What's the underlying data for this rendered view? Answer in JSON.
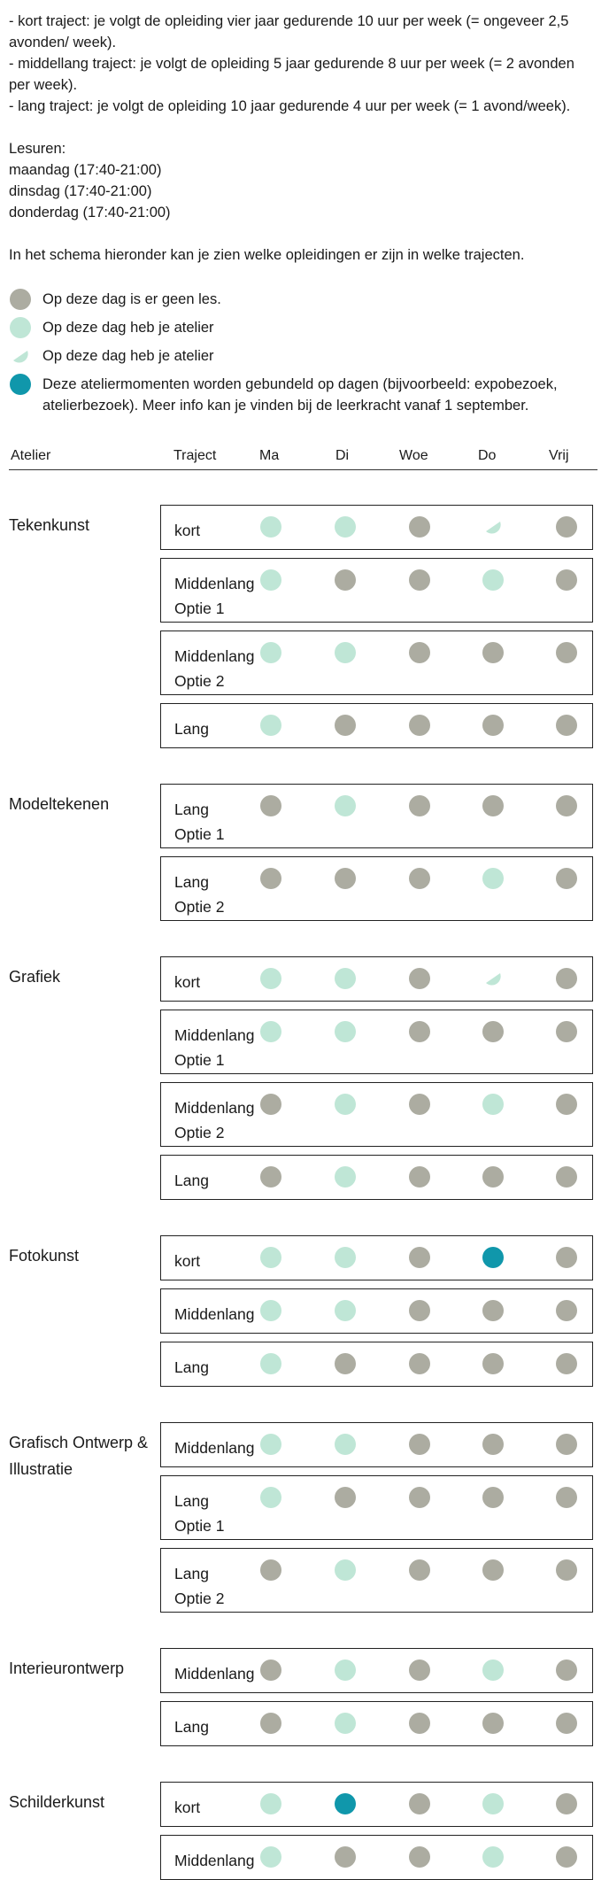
{
  "intro": {
    "lines": [
      "- kort traject: je volgt de opleiding vier jaar gedurende 10 uur per week (= ongeveer 2,5 avonden/ week).",
      "- middellang traject: je volgt de opleiding 5 jaar gedurende 8 uur per week (= 2 avonden per week).",
      "- lang traject: je volgt de opleiding 10 jaar gedurende 4 uur per week (= 1 avond/week)."
    ],
    "lesuren_title": "Lesuren:",
    "lesuren": [
      "maandag (17:40-21:00)",
      "dinsdag (17:40-21:00)",
      "donderdag (17:40-21:00)"
    ],
    "schema_text": "In het schema hieronder kan je zien welke opleidingen er zijn in welke trajecten."
  },
  "legend": [
    {
      "type": "grey",
      "text": "Op deze dag is er geen les."
    },
    {
      "type": "green",
      "text": "Op deze dag heb je atelier"
    },
    {
      "type": "half",
      "text": "Op deze dag heb je atelier"
    },
    {
      "type": "blue",
      "text": "Deze ateliermomenten worden gebundeld op dagen (bijvoorbeeld: expobezoek, atelierbezoek). Meer info kan je vinden bij de leerkracht vanaf 1 september."
    }
  ],
  "colors": {
    "grey": "#acaca1",
    "green": "#bfe6d6",
    "blue": "#1097ab"
  },
  "table_header": {
    "atelier": "Atelier",
    "traject": "Traject",
    "days": [
      "Ma",
      "Di",
      "Woe",
      "Do",
      "Vrij"
    ]
  },
  "groups": [
    {
      "name": "Tekenkunst",
      "rows": [
        {
          "label": [
            "kort"
          ],
          "days": [
            "green",
            "green",
            "grey",
            "half",
            "grey"
          ]
        },
        {
          "label": [
            "Middenlang",
            "Optie 1"
          ],
          "days": [
            "green",
            "grey",
            "grey",
            "green",
            "grey"
          ]
        },
        {
          "label": [
            "Middenlang",
            "Optie 2"
          ],
          "days": [
            "green",
            "green",
            "grey",
            "grey",
            "grey"
          ]
        },
        {
          "label": [
            "Lang"
          ],
          "days": [
            "green",
            "grey",
            "grey",
            "grey",
            "grey"
          ]
        }
      ]
    },
    {
      "name": "Modeltekenen",
      "rows": [
        {
          "label": [
            "Lang",
            "Optie 1"
          ],
          "days": [
            "grey",
            "green",
            "grey",
            "grey",
            "grey"
          ]
        },
        {
          "label": [
            "Lang",
            "Optie 2"
          ],
          "days": [
            "grey",
            "grey",
            "grey",
            "green",
            "grey"
          ]
        }
      ]
    },
    {
      "name": "Grafiek",
      "rows": [
        {
          "label": [
            "kort"
          ],
          "days": [
            "green",
            "green",
            "grey",
            "half",
            "grey"
          ]
        },
        {
          "label": [
            "Middenlang",
            "Optie 1"
          ],
          "days": [
            "green",
            "green",
            "grey",
            "grey",
            "grey"
          ]
        },
        {
          "label": [
            "Middenlang",
            "Optie 2"
          ],
          "days": [
            "grey",
            "green",
            "grey",
            "green",
            "grey"
          ]
        },
        {
          "label": [
            "Lang"
          ],
          "days": [
            "grey",
            "green",
            "grey",
            "grey",
            "grey"
          ]
        }
      ]
    },
    {
      "name": "Fotokunst",
      "rows": [
        {
          "label": [
            "kort"
          ],
          "days": [
            "green",
            "green",
            "grey",
            "blue",
            "grey"
          ]
        },
        {
          "label": [
            "Middenlang"
          ],
          "days": [
            "green",
            "green",
            "grey",
            "grey",
            "grey"
          ]
        },
        {
          "label": [
            "Lang"
          ],
          "days": [
            "green",
            "grey",
            "grey",
            "grey",
            "grey"
          ]
        }
      ]
    },
    {
      "name": "Grafisch Ontwerp & Illustratie",
      "rows": [
        {
          "label": [
            "Middenlang"
          ],
          "days": [
            "green",
            "green",
            "grey",
            "grey",
            "grey"
          ]
        },
        {
          "label": [
            "Lang",
            "Optie 1"
          ],
          "days": [
            "green",
            "grey",
            "grey",
            "grey",
            "grey"
          ]
        },
        {
          "label": [
            "Lang",
            "Optie 2"
          ],
          "days": [
            "grey",
            "green",
            "grey",
            "grey",
            "grey"
          ]
        }
      ]
    },
    {
      "name": "Interieurontwerp",
      "rows": [
        {
          "label": [
            "Middenlang"
          ],
          "days": [
            "grey",
            "green",
            "grey",
            "green",
            "grey"
          ]
        },
        {
          "label": [
            "Lang"
          ],
          "days": [
            "grey",
            "green",
            "grey",
            "grey",
            "grey"
          ]
        }
      ]
    },
    {
      "name": "Schilderkunst",
      "rows": [
        {
          "label": [
            "kort"
          ],
          "days": [
            "green",
            "blue",
            "grey",
            "green",
            "grey"
          ]
        },
        {
          "label": [
            "Middenlang"
          ],
          "days": [
            "green",
            "grey",
            "grey",
            "green",
            "grey"
          ]
        }
      ]
    }
  ]
}
